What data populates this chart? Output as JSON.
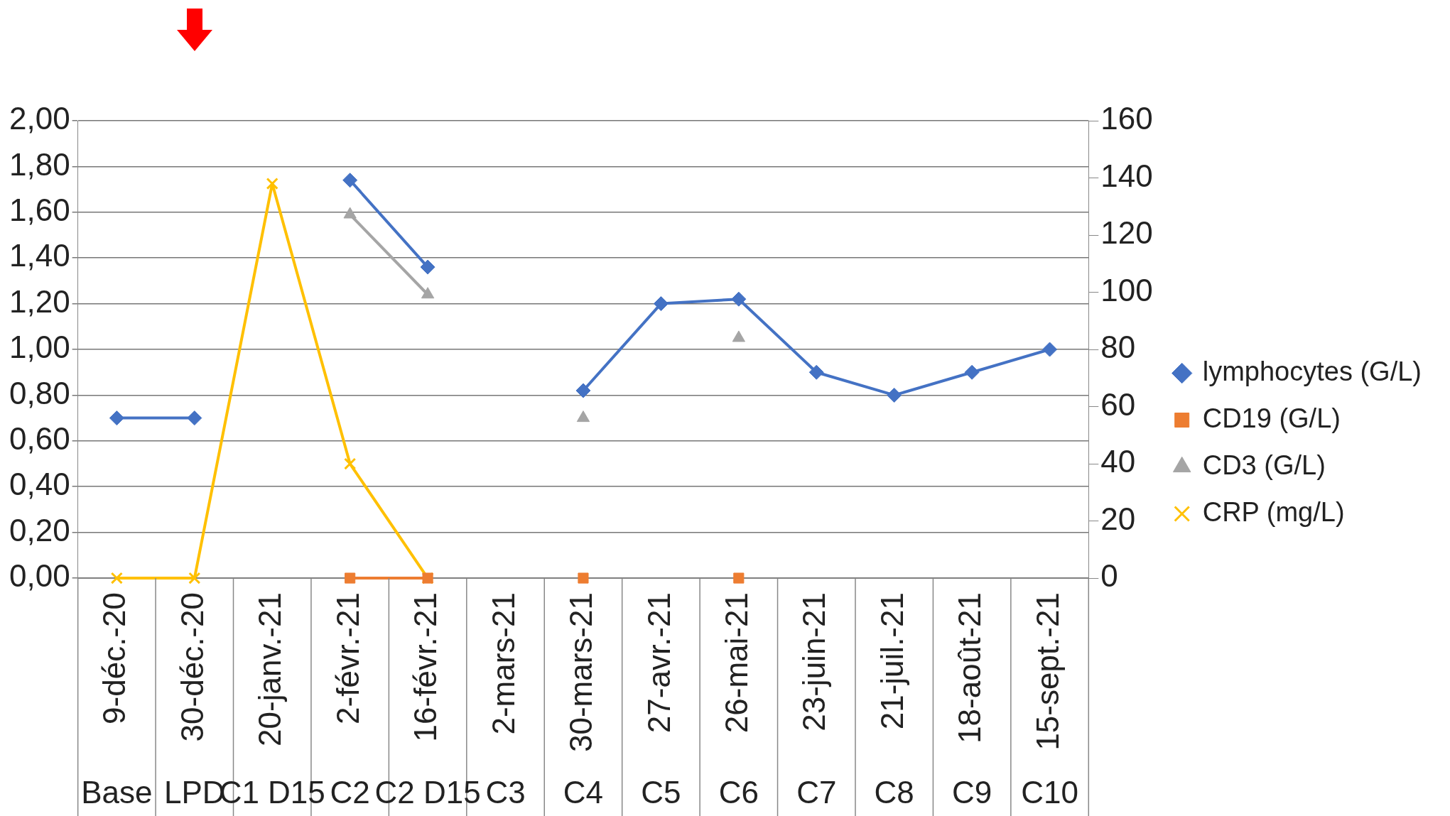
{
  "chart_data": {
    "type": "line",
    "categories": [
      "9-déc.-20",
      "30-déc.-20",
      "20-janv.-21",
      "2-févr.-21",
      "16-févr.-21",
      "2-mars-21",
      "30-mars-21",
      "27-avr.-21",
      "26-mai-21",
      "23-juin-21",
      "21-juil.-21",
      "18-août-21",
      "15-sept.-21"
    ],
    "series": [
      {
        "name": "lymphocytes (G/L)",
        "color": "#4472c4",
        "marker": "diamond",
        "values": [
          0.7,
          0.7,
          null,
          1.74,
          1.36,
          null,
          0.82,
          1.2,
          1.22,
          0.9,
          0.8,
          0.9,
          1.0
        ]
      },
      {
        "name": "CD19 (G/L)",
        "color": "#ed7d31",
        "marker": "square",
        "values": [
          null,
          null,
          null,
          0,
          0,
          null,
          0,
          null,
          0,
          null,
          null,
          null,
          null
        ]
      },
      {
        "name": "CD3 (G/L)",
        "color": "#a5a5a5",
        "marker": "triangle",
        "values": [
          null,
          null,
          null,
          1.59,
          1.24,
          null,
          0.7,
          null,
          1.05,
          null,
          null,
          null,
          null
        ]
      },
      {
        "name": "CRP (mg/L)",
        "color": "#ffc000",
        "marker": "cross",
        "axis": "y2",
        "values": [
          0,
          0,
          138,
          40,
          0,
          null,
          null,
          null,
          null,
          null,
          null,
          null,
          null
        ]
      }
    ],
    "ylim": [
      0,
      2
    ],
    "yticks": [
      {
        "value": 0,
        "label": "0,00"
      },
      {
        "value": 0.2,
        "label": "0,20"
      },
      {
        "value": 0.4,
        "label": "0,40"
      },
      {
        "value": 0.6,
        "label": "0,60"
      },
      {
        "value": 0.8,
        "label": "0,80"
      },
      {
        "value": 1,
        "label": "1,00"
      },
      {
        "value": 1.2,
        "label": "1,20"
      },
      {
        "value": 1.4,
        "label": "1,40"
      },
      {
        "value": 1.6,
        "label": "1,60"
      },
      {
        "value": 1.8,
        "label": "1,80"
      },
      {
        "value": 2,
        "label": "2,00"
      }
    ],
    "y2lim": [
      0,
      160
    ],
    "y2ticks": [
      0,
      20,
      40,
      60,
      80,
      100,
      120,
      140,
      160
    ],
    "annotations": [
      "Base",
      "LPD",
      "C1 D15",
      "C2",
      "C2 D15",
      "C3",
      "C4",
      "C5",
      "C6",
      "C7",
      "C8",
      "C9",
      "C10"
    ],
    "grid": "y",
    "legend": "right"
  }
}
